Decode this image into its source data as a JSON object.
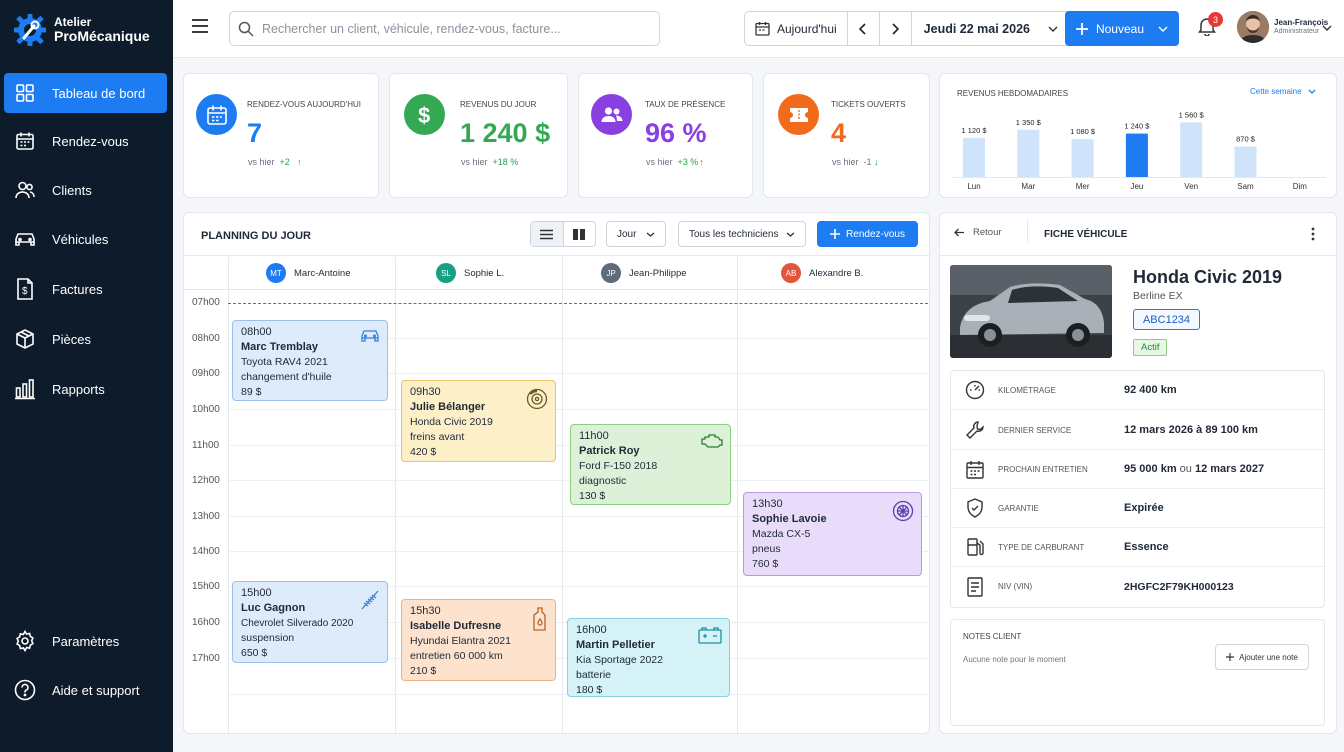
{
  "app": {
    "name_line1": "Atelier",
    "name_line2": "ProMécanique"
  },
  "sidebar": {
    "items": [
      {
        "label": "Tableau de bord",
        "icon": "dashboard-icon",
        "active": true
      },
      {
        "label": "Rendez-vous",
        "icon": "calendar-icon"
      },
      {
        "label": "Clients",
        "icon": "users-icon"
      },
      {
        "label": "Véhicules",
        "icon": "car-icon"
      },
      {
        "label": "Factures",
        "icon": "invoice-icon"
      },
      {
        "label": "Pièces",
        "icon": "box-icon"
      },
      {
        "label": "Rapports",
        "icon": "bar-chart-icon"
      }
    ],
    "bottom": [
      {
        "label": "Paramètres",
        "icon": "gear-icon"
      },
      {
        "label": "Aide et support",
        "icon": "help-icon"
      }
    ]
  },
  "topbar": {
    "search_placeholder": "Rechercher un client, véhicule, rendez-vous, facture...",
    "today_label": "Aujourd'hui",
    "date": "Jeudi 22 mai 2026",
    "new_label": "Nouveau",
    "notif_count": "3",
    "user_name": "Jean-François",
    "user_role": "Administrateur"
  },
  "kpis": [
    {
      "label": "Rendez-vous aujourd'hui",
      "value": "7",
      "compare": "vs hier",
      "delta": "+2",
      "delta_arrow": "↑",
      "color": "#1e7cf2"
    },
    {
      "label": "Revenus du jour",
      "value": "1 240 $",
      "compare": "vs hier",
      "delta": "+18 %",
      "delta_arrow": "",
      "color": "#34a853"
    },
    {
      "label": "Taux de présence",
      "value": "96 %",
      "compare": "vs hier",
      "delta": "+3 %",
      "delta_arrow": "↑",
      "color": "#8a3fe0"
    },
    {
      "label": "Tickets ouverts",
      "value": "4",
      "compare": "vs hier",
      "delta": "-1",
      "delta_arrow": "↓",
      "color": "#f26a1b"
    }
  ],
  "weekly": {
    "title": "Revenus hebdomadaires",
    "range": "Cette semaine"
  },
  "chart_data": {
    "type": "bar",
    "categories": [
      "Lun",
      "Mar",
      "Mer",
      "Jeu",
      "Ven",
      "Sam",
      "Dim"
    ],
    "values": [
      1120,
      1350,
      1080,
      1240,
      1560,
      870,
      null
    ],
    "value_labels": [
      "1 120 $",
      "1 350 $",
      "1 080 $",
      "1 240 $",
      "1 560 $",
      "870 $",
      ""
    ],
    "highlight_index": 3,
    "colors": {
      "normal": "#cfe3fb",
      "highlight": "#1e7cf2"
    }
  },
  "planning": {
    "title": "Planning du jour",
    "view_select": "Jour",
    "tech_select": "Tous les techniciens",
    "add_label": "Rendez-vous",
    "technicians": [
      {
        "initials": "MT",
        "name": "Marc-Antoine",
        "color": "#1e7cf2"
      },
      {
        "initials": "SL",
        "name": "Sophie L.",
        "color": "#16a085"
      },
      {
        "initials": "JP",
        "name": "Jean-Philippe",
        "color": "#5f6b7a"
      },
      {
        "initials": "AB",
        "name": "Alexandre B.",
        "color": "#e2553d"
      }
    ],
    "hours": [
      "07h00",
      "08h00",
      "09h00",
      "10h00",
      "11h00",
      "12h00",
      "13h00",
      "14h00",
      "15h00",
      "16h00",
      "17h00"
    ],
    "appointments": [
      {
        "time": "08h00",
        "name": "Marc Tremblay",
        "vehicle": "Toyota RAV4 2021",
        "service": "changement d'huile",
        "price": "89 $",
        "icon": "car-icon"
      },
      {
        "time": "09h30",
        "name": "Julie Bélanger",
        "vehicle": "Honda Civic 2019",
        "service": "freins avant",
        "price": "420 $",
        "icon": "brake-disc-icon"
      },
      {
        "time": "11h00",
        "name": "Patrick Roy",
        "vehicle": "Ford F-150 2018",
        "service": "diagnostic",
        "price": "130 $",
        "icon": "engine-icon"
      },
      {
        "time": "13h30",
        "name": "Sophie Lavoie",
        "vehicle": "Mazda CX-5",
        "service": "pneus",
        "price": "760 $",
        "icon": "tire-icon"
      },
      {
        "time": "15h00",
        "name": "Luc Gagnon",
        "vehicle": "Chevrolet Silverado 2020",
        "service": "suspension",
        "price": "650 $",
        "icon": "spring-icon"
      },
      {
        "time": "15h30",
        "name": "Isabelle Dufresne",
        "vehicle": "Hyundai Elantra 2021",
        "service": "entretien 60 000 km",
        "price": "210 $",
        "icon": "oil-bottle-icon"
      },
      {
        "time": "16h00",
        "name": "Martin Pelletier",
        "vehicle": "Kia Sportage 2022",
        "service": "batterie",
        "price": "180 $",
        "icon": "battery-icon"
      }
    ]
  },
  "vehicle": {
    "back_label": "Retour",
    "title": "Fiche véhicule",
    "name": "Honda Civic 2019",
    "type": "Berline EX",
    "plate": "ABC1234",
    "status": "Actif",
    "specs": [
      {
        "label": "Kilométrage",
        "value": "92 400 km",
        "icon": "speedometer-icon"
      },
      {
        "label": "Dernier service",
        "value": "12 mars 2026 à 89 100 km",
        "icon": "wrench-icon"
      },
      {
        "label": "Prochain entretien",
        "value_a": "95 000 km",
        "or": "ou",
        "value_b": "12 mars 2027",
        "icon": "calendar-icon"
      },
      {
        "label": "Garantie",
        "value": "Expirée",
        "icon": "shield-icon"
      },
      {
        "label": "Type de carburant",
        "value": "Essence",
        "icon": "fuel-icon"
      },
      {
        "label": "NIV (VIN)",
        "value": "2HGFC2F79KH000123",
        "icon": "document-icon"
      }
    ],
    "notes_title": "Notes client",
    "notes_empty": "Aucune note pour le moment",
    "add_note_label": "Ajouter une note"
  }
}
